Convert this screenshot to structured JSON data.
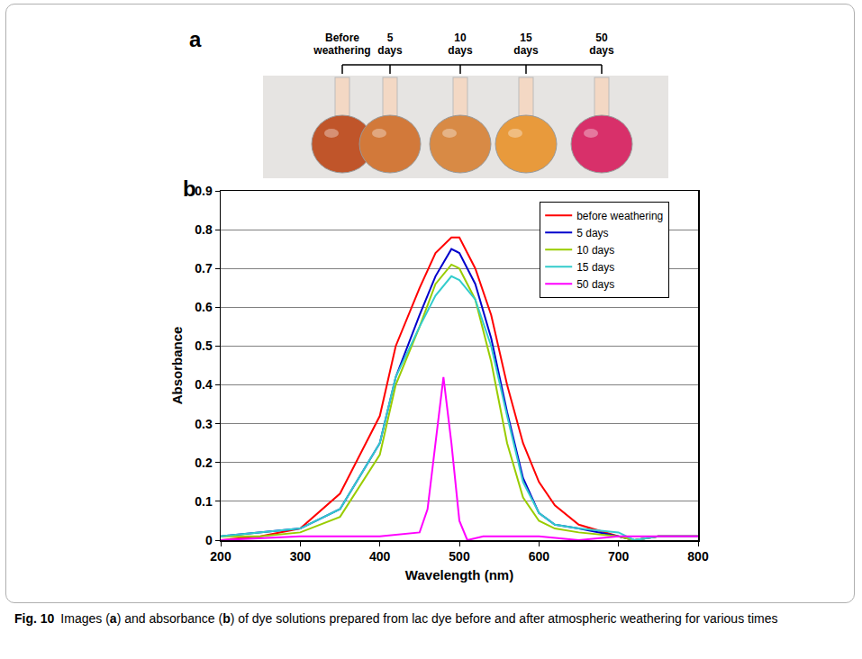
{
  "panel_a": {
    "label": "a",
    "images": [
      {
        "label": "Before weathering",
        "color": "#c0552a"
      },
      {
        "label": "5 days",
        "color": "#d2793a"
      },
      {
        "label": "10 days",
        "color": "#d88a45"
      },
      {
        "label": "15 days",
        "color": "#e89a3c"
      },
      {
        "label": "50 days",
        "color": "#d8306a"
      }
    ]
  },
  "panel_b": {
    "label": "b"
  },
  "chart_data": {
    "type": "line",
    "x_title": "Wavelength (nm)",
    "y_title": "Absorbance",
    "xlim": [
      200,
      800
    ],
    "xticks": [
      200,
      300,
      400,
      500,
      600,
      700,
      800
    ],
    "ylim": [
      0,
      0.9
    ],
    "yticks": [
      0,
      0.1,
      0.2,
      0.3,
      0.4,
      0.5,
      0.6,
      0.7,
      0.8,
      0.9
    ],
    "grid": true,
    "legend": "upper right",
    "series": [
      {
        "name": "before weathering",
        "color": "#ff0000",
        "x": [
          200,
          250,
          300,
          350,
          400,
          420,
          450,
          470,
          490,
          500,
          520,
          540,
          560,
          580,
          600,
          620,
          650,
          700,
          720,
          750,
          800
        ],
        "values": [
          0,
          0.01,
          0.03,
          0.12,
          0.32,
          0.5,
          0.65,
          0.74,
          0.78,
          0.78,
          0.7,
          0.58,
          0.4,
          0.25,
          0.15,
          0.09,
          0.04,
          0.01,
          0,
          0.01,
          0.01
        ]
      },
      {
        "name": "5 days",
        "color": "#0000cc",
        "x": [
          200,
          250,
          300,
          350,
          400,
          420,
          450,
          470,
          490,
          500,
          520,
          540,
          560,
          580,
          600,
          620,
          650,
          700,
          720,
          750,
          800
        ],
        "values": [
          0.01,
          0.02,
          0.03,
          0.08,
          0.25,
          0.42,
          0.58,
          0.68,
          0.75,
          0.74,
          0.66,
          0.52,
          0.33,
          0.16,
          0.07,
          0.04,
          0.03,
          0.01,
          0,
          0.01,
          0.01
        ]
      },
      {
        "name": "10 days",
        "color": "#99cc00",
        "x": [
          200,
          250,
          300,
          350,
          400,
          420,
          450,
          470,
          490,
          500,
          520,
          540,
          560,
          580,
          600,
          620,
          650,
          700,
          720,
          750,
          800
        ],
        "values": [
          0.01,
          0.01,
          0.02,
          0.06,
          0.22,
          0.4,
          0.55,
          0.66,
          0.71,
          0.7,
          0.62,
          0.46,
          0.25,
          0.11,
          0.05,
          0.03,
          0.02,
          0.01,
          0,
          0.01,
          0.01
        ]
      },
      {
        "name": "15 days",
        "color": "#33cccc",
        "x": [
          200,
          250,
          300,
          350,
          400,
          420,
          450,
          470,
          490,
          500,
          520,
          540,
          560,
          580,
          600,
          620,
          650,
          700,
          720,
          750,
          800
        ],
        "values": [
          0.01,
          0.02,
          0.03,
          0.08,
          0.25,
          0.42,
          0.55,
          0.63,
          0.68,
          0.67,
          0.62,
          0.5,
          0.32,
          0.15,
          0.07,
          0.04,
          0.03,
          0.02,
          0,
          0.01,
          0.01
        ]
      },
      {
        "name": "50 days",
        "color": "#ff00ff",
        "x": [
          200,
          300,
          400,
          450,
          460,
          470,
          480,
          490,
          500,
          510,
          530,
          550,
          600,
          650,
          700,
          750,
          800
        ],
        "values": [
          0,
          0.01,
          0.01,
          0.02,
          0.08,
          0.25,
          0.42,
          0.25,
          0.05,
          0,
          0.01,
          0.01,
          0.01,
          0,
          0.01,
          0.01,
          0.01
        ]
      }
    ]
  },
  "caption": {
    "label": "Fig. 10",
    "segments": [
      [
        "Images (",
        false
      ],
      [
        "a",
        true
      ],
      [
        ") and absorbance (",
        false
      ],
      [
        "b",
        true
      ],
      [
        ") of dye solutions prepared from lac dye before and after atmospheric weathering for various times",
        false
      ]
    ]
  }
}
